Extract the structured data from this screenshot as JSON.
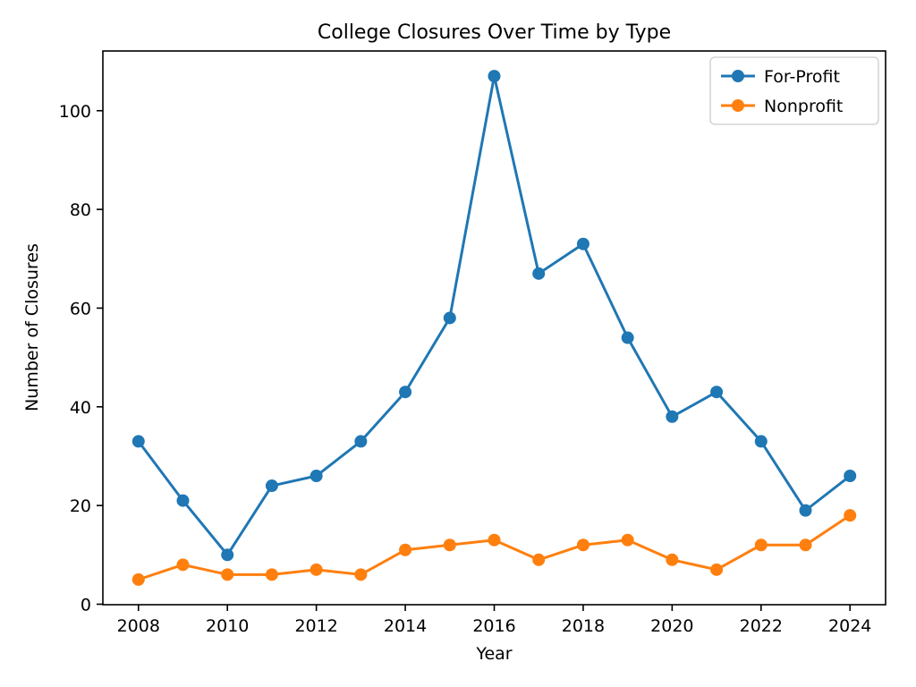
{
  "chart_data": {
    "type": "line",
    "title": "College Closures Over Time by Type",
    "xlabel": "Year",
    "ylabel": "Number of Closures",
    "x": [
      2008,
      2009,
      2010,
      2011,
      2012,
      2013,
      2014,
      2015,
      2016,
      2017,
      2018,
      2019,
      2020,
      2021,
      2022,
      2023,
      2024
    ],
    "series": [
      {
        "name": "For-Profit",
        "color": "#1f77b4",
        "values": [
          33,
          21,
          10,
          24,
          26,
          33,
          43,
          58,
          107,
          67,
          73,
          54,
          38,
          43,
          33,
          19,
          26
        ]
      },
      {
        "name": "Nonprofit",
        "color": "#ff7f0e",
        "values": [
          5,
          8,
          6,
          6,
          7,
          6,
          11,
          12,
          13,
          9,
          12,
          13,
          9,
          7,
          12,
          12,
          18
        ]
      }
    ],
    "xticks": [
      2008,
      2010,
      2012,
      2014,
      2016,
      2018,
      2020,
      2022,
      2024
    ],
    "yticks": [
      0,
      20,
      40,
      60,
      80,
      100
    ],
    "xlim": [
      2007.2,
      2024.8
    ],
    "ylim": [
      -0.1,
      112.1
    ],
    "legend_position": "upper right",
    "grid": false,
    "marker": "circle",
    "background": "#ffffff"
  }
}
